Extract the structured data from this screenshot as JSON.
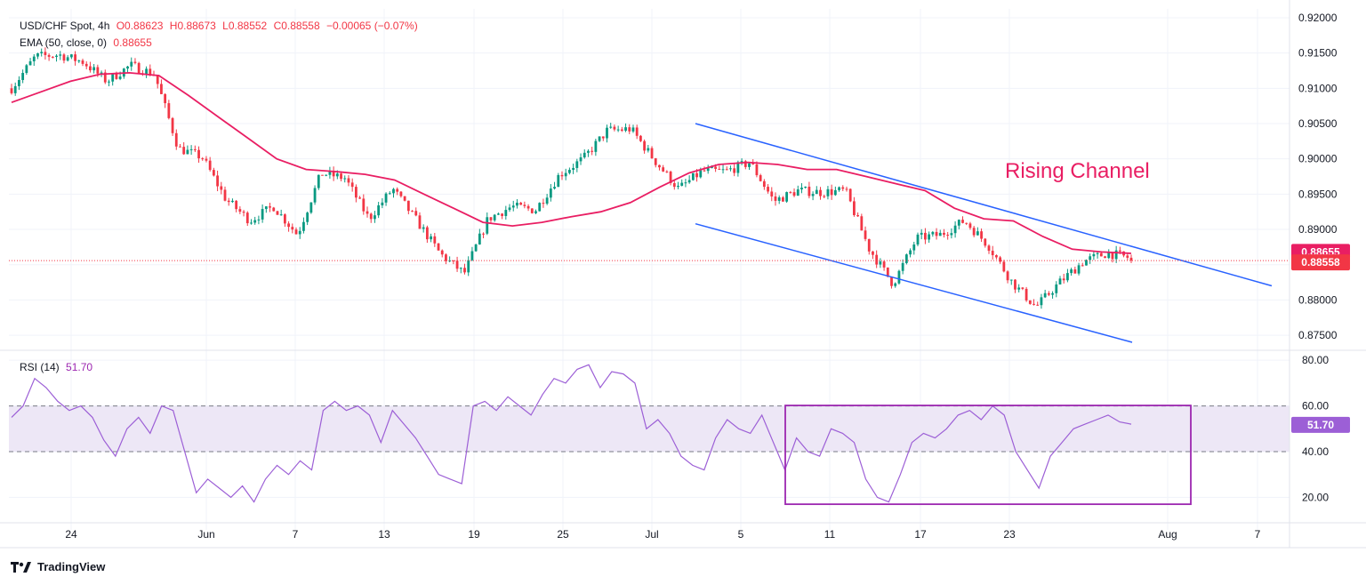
{
  "header": {
    "symbol": "USD/CHF Spot, 4h",
    "open": "O0.88623",
    "high": "H0.88673",
    "low": "L0.88552",
    "close": "C0.88558",
    "change": "−0.00065 (−0.07%)",
    "ema_label": "EMA (50, close, 0)",
    "ema_value": "0.88655",
    "rsi_label": "RSI (14)",
    "rsi_value": "51.70"
  },
  "brand": {
    "name": "TradingView"
  },
  "colors": {
    "up": "#089981",
    "down": "#f23645",
    "ema": "#e91e63",
    "channel": "#2962ff",
    "rsi": "#9c5fd6",
    "rsi_box": "#9c27b0",
    "annotation": "#e91e63",
    "band": "#ede7f6"
  },
  "chart_data": [
    {
      "type": "candlestick",
      "title": "USD/CHF Spot, 4h",
      "x_ticks": [
        "24",
        "Jun",
        "7",
        "13",
        "19",
        "25",
        "Jul",
        "5",
        "11",
        "17",
        "23",
        "Aug",
        "7"
      ],
      "y_ticks": [
        "0.92000",
        "0.91500",
        "0.91000",
        "0.90500",
        "0.90000",
        "0.89500",
        "0.89000",
        "0.88500",
        "0.88000",
        "0.87500"
      ],
      "ylim": [
        0.874,
        0.9205
      ],
      "last_price": "0.88558",
      "ema_last": "0.88655",
      "price_path": [
        [
          0.9095,
          0.9105
        ],
        [
          0.915,
          0.914
        ],
        [
          0.9145,
          0.915
        ],
        [
          0.9135,
          0.914
        ],
        [
          0.912,
          0.91
        ],
        [
          0.9135,
          0.913
        ],
        [
          0.913,
          0.911
        ],
        [
          0.902,
          0.901
        ],
        [
          0.8995,
          0.901
        ],
        [
          0.894,
          0.8945
        ],
        [
          0.8905,
          0.892
        ],
        [
          0.8935,
          0.893
        ],
        [
          0.89,
          0.8885
        ],
        [
          0.897,
          0.899
        ],
        [
          0.8965,
          0.898
        ],
        [
          0.8905,
          0.8925
        ],
        [
          0.896,
          0.8955
        ],
        [
          0.892,
          0.8905
        ],
        [
          0.888,
          0.885
        ],
        [
          0.8835,
          0.884
        ],
        [
          0.8905,
          0.8925
        ],
        [
          0.8925,
          0.894
        ],
        [
          0.892,
          0.8935
        ],
        [
          0.897,
          0.8985
        ],
        [
          0.899,
          0.901
        ],
        [
          0.9035,
          0.9045
        ],
        [
          0.9045,
          0.904
        ],
        [
          0.9,
          0.8995
        ],
        [
          0.896,
          0.8955
        ],
        [
          0.8985,
          0.898
        ],
        [
          0.898,
          0.8985
        ],
        [
          0.899,
          0.9
        ],
        [
          0.892,
          0.896
        ],
        [
          0.896,
          0.895
        ],
        [
          0.8945,
          0.896
        ],
        [
          0.896,
          0.895
        ],
        [
          0.8885,
          0.886
        ],
        [
          0.8825,
          0.882
        ],
        [
          0.8885,
          0.889
        ],
        [
          0.889,
          0.8895
        ],
        [
          0.8905,
          0.892
        ],
        [
          0.8895,
          0.886
        ],
        [
          0.883,
          0.882
        ],
        [
          0.8795,
          0.8785
        ],
        [
          0.882,
          0.883
        ],
        [
          0.885,
          0.886
        ],
        [
          0.8867,
          0.8866
        ],
        [
          0.8862,
          0.8856
        ]
      ],
      "ema_path": [
        0.908,
        0.9095,
        0.911,
        0.912,
        0.9122,
        0.9118,
        0.909,
        0.906,
        0.903,
        0.9,
        0.8985,
        0.8982,
        0.8978,
        0.897,
        0.895,
        0.893,
        0.891,
        0.8905,
        0.891,
        0.8918,
        0.8925,
        0.8938,
        0.896,
        0.898,
        0.8992,
        0.8995,
        0.8992,
        0.8985,
        0.8985,
        0.8975,
        0.8965,
        0.8955,
        0.893,
        0.8915,
        0.8912,
        0.889,
        0.8872,
        0.8868,
        0.8866
      ],
      "channel_upper": [
        [
          0.905,
          0.905
        ],
        [
          0.882,
          0.882
        ]
      ],
      "channel_lower": [
        [
          0.8908,
          0.8908
        ],
        [
          0.874,
          0.874
        ]
      ],
      "annotation": "Rising Channel"
    },
    {
      "type": "line",
      "title": "RSI (14)",
      "y_ticks": [
        "80.00",
        "60.00",
        "40.00",
        "20.00"
      ],
      "ylim": [
        12,
        82
      ],
      "band": [
        40,
        60
      ],
      "last_value": "51.70",
      "values": [
        55,
        60,
        72,
        68,
        62,
        58,
        60,
        55,
        45,
        38,
        50,
        55,
        48,
        60,
        58,
        40,
        22,
        28,
        24,
        20,
        25,
        18,
        28,
        34,
        30,
        36,
        32,
        58,
        62,
        58,
        60,
        56,
        44,
        58,
        52,
        46,
        38,
        30,
        28,
        26,
        60,
        62,
        58,
        64,
        60,
        56,
        65,
        72,
        70,
        76,
        78,
        68,
        75,
        74,
        70,
        50,
        54,
        48,
        38,
        34,
        32,
        46,
        54,
        50,
        48,
        56,
        44,
        32,
        46,
        40,
        38,
        50,
        48,
        44,
        28,
        20,
        18,
        30,
        44,
        48,
        46,
        50,
        56,
        58,
        54,
        60,
        56,
        40,
        32,
        24,
        38,
        44,
        50,
        52,
        54,
        56,
        53,
        52
      ]
    }
  ]
}
